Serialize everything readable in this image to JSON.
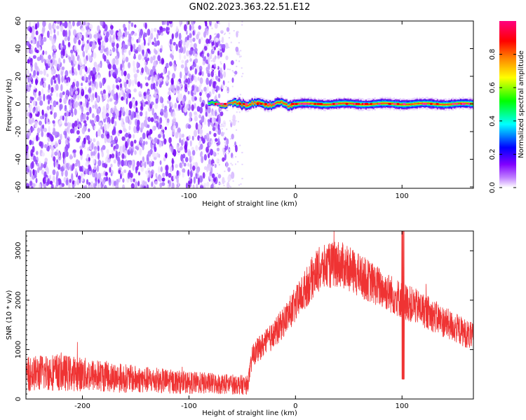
{
  "title": "GN02.2023.363.22.51.E12",
  "chart_data": [
    {
      "type": "heatmap",
      "xlabel": "Height of straight line (km)",
      "ylabel": "Frequency (Hz)",
      "xlim": [
        -253,
        167
      ],
      "ylim": [
        -61,
        60
      ],
      "xticks": [
        -200,
        -100,
        0,
        100
      ],
      "yticks": [
        -60,
        -40,
        -20,
        0,
        20,
        40,
        60
      ],
      "colorbar": {
        "label": "Normalized spectral amplitude",
        "range": [
          0,
          1
        ],
        "ticks": [
          "0.0",
          "0.2",
          "0.4",
          "0.6",
          "0.8"
        ],
        "colors": [
          "#ffffff",
          "#8000ff",
          "#0000ff",
          "#00ffff",
          "#00ff00",
          "#ffff00",
          "#ff8000",
          "#ff0000",
          "#ff0080"
        ]
      },
      "regions": [
        {
          "x_range": [
            -253,
            -70
          ],
          "freq_range": [
            -61,
            60
          ],
          "amplitude": "0.1-0.3 (noise)"
        },
        {
          "x_range": [
            -80,
            167
          ],
          "freq_center": 0,
          "freq_halfwidth": 4,
          "amplitude": "0.8-1.0"
        }
      ]
    },
    {
      "type": "line",
      "xlabel": "Height of straight line (km)",
      "ylabel": "SNR (10 * v/v)",
      "xlim": [
        -253,
        167
      ],
      "ylim": [
        0,
        3400
      ],
      "xticks": [
        -200,
        -100,
        0,
        100
      ],
      "yticks": [
        0,
        1000,
        2000,
        3000
      ],
      "color": "#ef3333",
      "x": [
        -253,
        -230,
        -200,
        -150,
        -100,
        -60,
        -45,
        -40,
        -20,
        0,
        20,
        40,
        60,
        80,
        100,
        120,
        140,
        167
      ],
      "y": [
        500,
        550,
        500,
        400,
        330,
        300,
        280,
        900,
        1300,
        1900,
        2600,
        2750,
        2500,
        2250,
        2000,
        1800,
        1550,
        1250
      ]
    }
  ]
}
